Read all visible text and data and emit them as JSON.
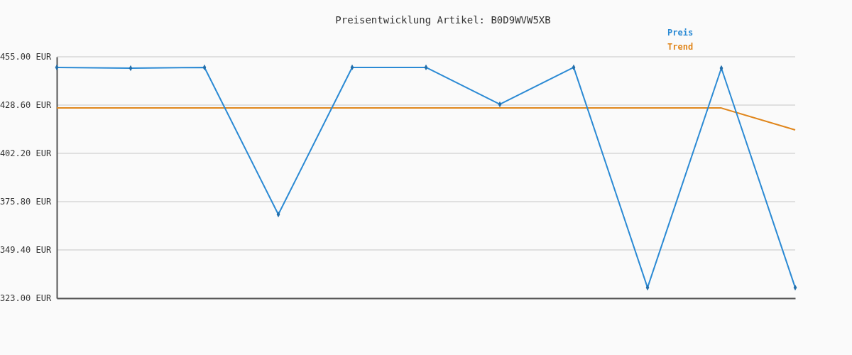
{
  "chart_data": {
    "type": "line",
    "title": "Preisentwicklung Artikel: B0D9WVW5XB",
    "categories": [
      null,
      null,
      null,
      null,
      null,
      null,
      null,
      null,
      null,
      null,
      null
    ],
    "series": [
      {
        "name": "Preis",
        "color": "#2b8ad4",
        "marker": "diamond",
        "values": [
          449.2,
          448.8,
          449.2,
          368.8,
          449.2,
          449.2,
          429.0,
          449.2,
          328.8,
          448.8,
          328.8
        ]
      },
      {
        "name": "Trend",
        "color": "#e0861c",
        "marker": "none",
        "values": [
          427.0,
          427.0,
          427.0,
          427.0,
          427.0,
          427.0,
          427.0,
          427.0,
          427.0,
          427.0,
          415.0
        ]
      }
    ],
    "ylim": [
      323,
      455
    ],
    "yticks": [
      {
        "value": 323,
        "label": "323.00 EUR"
      },
      {
        "value": 349.4,
        "label": "349.40 EUR"
      },
      {
        "value": 375.8,
        "label": "375.80 EUR"
      },
      {
        "value": 402.2,
        "label": "402.20 EUR"
      },
      {
        "value": 428.6,
        "label": "428.60 EUR"
      },
      {
        "value": 455,
        "label": "455.00 EUR"
      }
    ],
    "grid": "y",
    "legend": "top right",
    "line_style": "solid"
  }
}
